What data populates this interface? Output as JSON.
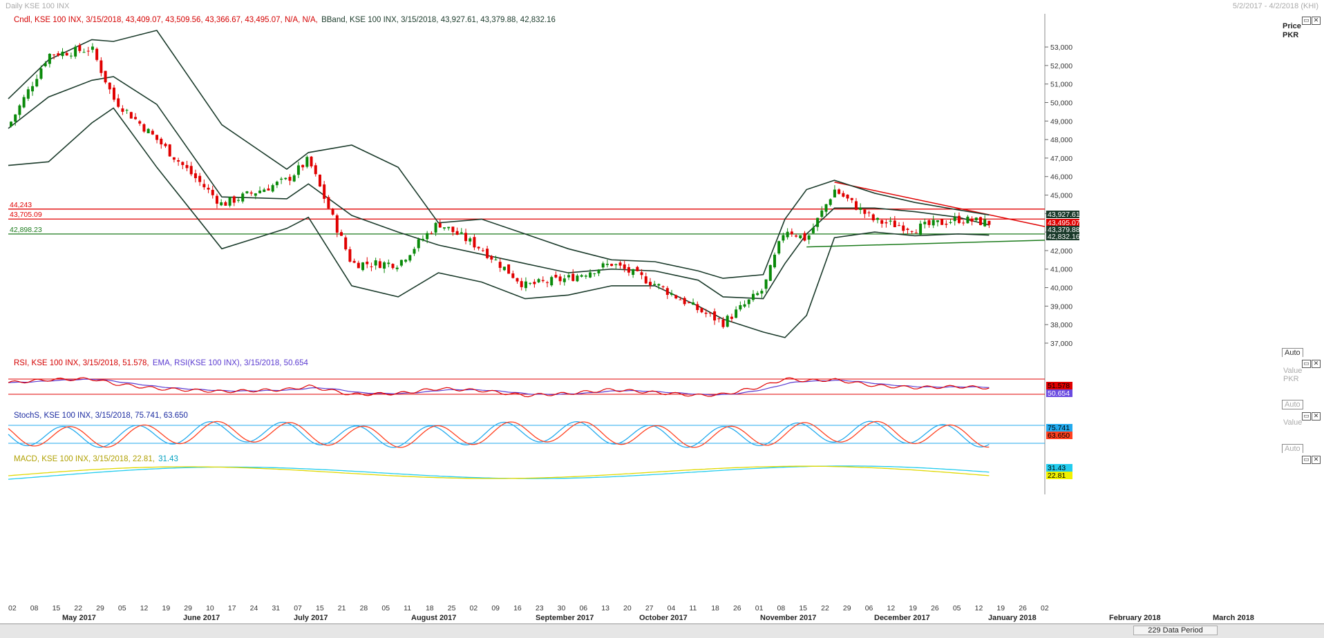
{
  "window": {
    "title": "Daily KSE 100 INX",
    "date_range": "5/2/2017 - 4/2/2018 (KHI)"
  },
  "panes": {
    "price": {
      "legend": [
        {
          "text": "Cndl, KSE 100 INX, 3/15/2018, 43,409.07, 43,509.56, 43,366.67, 43,495.07, N/A, N/A,",
          "color": "#d40000"
        },
        {
          "text": "BBand, KSE 100 INX, 3/15/2018, 43,927.61, 43,379.88, 42,832.16",
          "color": "#1a3a2a"
        }
      ],
      "axis_title": "Price",
      "axis_unit": "PKR",
      "auto": "Auto",
      "ticks": [
        "53,000",
        "52,000",
        "51,000",
        "50,000",
        "49,000",
        "48,000",
        "47,000",
        "46,000",
        "45,000",
        "44,000",
        "43,000",
        "42,000",
        "41,000",
        "40,000",
        "39,000",
        "38,000",
        "37,000"
      ],
      "hlines": [
        {
          "label": "44,243",
          "value": 44243,
          "color": "#e00000"
        },
        {
          "label": "43,705.09",
          "value": 43705.09,
          "color": "#e00000"
        },
        {
          "label": "42,898.23",
          "value": 42898.23,
          "color": "#1a7a1a"
        }
      ],
      "value_tags": [
        {
          "text": "43,927.61",
          "bg": "#1a3a2a",
          "fg": "#ffffff"
        },
        {
          "text": "43,495.07",
          "bg": "#e00000",
          "fg": "#ffffff"
        },
        {
          "text": "43,379.88",
          "bg": "#1a3a2a",
          "fg": "#ffffff"
        },
        {
          "text": "42,832.16",
          "bg": "#1a3a2a",
          "fg": "#ffffff"
        }
      ]
    },
    "rsi": {
      "legend": [
        {
          "text": "RSI, KSE 100 INX, 3/15/2018, 51.578,",
          "color": "#d40000"
        },
        {
          "text": "EMA, RSI(KSE 100 INX), 3/15/2018, 50.654",
          "color": "#5a3ad0"
        }
      ],
      "axis_title": "Value",
      "axis_unit": "PKR",
      "auto": "Auto",
      "value_tags": [
        {
          "text": "51.578",
          "bg": "#e00000",
          "fg": "#000000"
        },
        {
          "text": "50.654",
          "bg": "#6a4ae0",
          "fg": "#ffffff"
        }
      ]
    },
    "stoch": {
      "legend": [
        {
          "text": "StochS, KSE 100 INX, 3/15/2018, 75.741, 63.650",
          "color": "#1a2aa0"
        }
      ],
      "axis_title": "Value",
      "auto": "Auto",
      "value_tags": [
        {
          "text": "75.741",
          "bg": "#22aaee",
          "fg": "#000000"
        },
        {
          "text": "63.650",
          "bg": "#ff4020",
          "fg": "#000000"
        }
      ]
    },
    "macd": {
      "legend": [
        {
          "text": "MACD, KSE 100 INX, 3/15/2018, 22.81,",
          "color": "#b0a000"
        },
        {
          "text": "31.43",
          "color": "#00a0c0"
        }
      ],
      "value_tags": [
        {
          "text": "31.43",
          "bg": "#22ccee",
          "fg": "#000000"
        },
        {
          "text": "22.81",
          "bg": "#f0f000",
          "fg": "#000000"
        }
      ]
    }
  },
  "x_axis": {
    "days": [
      "02",
      "08",
      "15",
      "22",
      "29",
      "05",
      "12",
      "19",
      "29",
      "10",
      "17",
      "24",
      "31",
      "07",
      "15",
      "21",
      "28",
      "05",
      "11",
      "18",
      "25",
      "02",
      "09",
      "16",
      "23",
      "30",
      "06",
      "13",
      "20",
      "27",
      "04",
      "11",
      "18",
      "26",
      "01",
      "08",
      "15",
      "22",
      "29",
      "06",
      "12",
      "19",
      "26",
      "05",
      "12",
      "19",
      "26",
      "02"
    ],
    "months": [
      "May 2017",
      "June 2017",
      "July 2017",
      "August 2017",
      "September 2017",
      "October 2017",
      "November 2017",
      "December 2017",
      "January 2018",
      "February 2018",
      "March 2018"
    ]
  },
  "status": {
    "data_period": "229 Data Period"
  },
  "chart_data": {
    "type": "line",
    "title": "Daily KSE 100 INX",
    "ylabel": "Price PKR",
    "ylim": [
      36700,
      53600
    ],
    "x": [
      "2017-05-02",
      "2017-05-15",
      "2017-05-29",
      "2017-06-05",
      "2017-06-19",
      "2017-07-10",
      "2017-07-31",
      "2017-08-07",
      "2017-08-21",
      "2017-09-05",
      "2017-09-18",
      "2017-10-02",
      "2017-10-16",
      "2017-10-30",
      "2017-11-13",
      "2017-11-27",
      "2017-12-11",
      "2017-12-19",
      "2018-01-01",
      "2018-01-08",
      "2018-01-15",
      "2018-01-24",
      "2018-02-06",
      "2018-02-19",
      "2018-03-05",
      "2018-03-15"
    ],
    "series": [
      {
        "name": "Cndl",
        "values": [
          48700,
          52600,
          52900,
          50200,
          48000,
          44500,
          45800,
          46900,
          41300,
          41300,
          43500,
          42100,
          40100,
          40500,
          41300,
          40200,
          38800,
          38100,
          39900,
          43200,
          42600,
          45300,
          43600,
          43200,
          43700,
          43495.07
        ]
      },
      {
        "name": "BBand upper",
        "values": [
          50200,
          52300,
          53400,
          53300,
          53900,
          48800,
          46400,
          47300,
          47700,
          46500,
          43500,
          43700,
          42900,
          42100,
          41500,
          41400,
          40900,
          40500,
          40700,
          43700,
          45300,
          45800,
          45100,
          44600,
          44200,
          43927.61
        ]
      },
      {
        "name": "BBand middle",
        "values": [
          48600,
          50300,
          51200,
          51400,
          49900,
          44900,
          44800,
          45600,
          43900,
          43000,
          42300,
          41800,
          41300,
          40800,
          41000,
          40900,
          40400,
          39500,
          39400,
          41300,
          42900,
          44300,
          44300,
          44100,
          43800,
          43379.88
        ]
      },
      {
        "name": "BBand lower",
        "values": [
          46600,
          46800,
          48900,
          49700,
          46500,
          42100,
          43200,
          43800,
          40100,
          39500,
          40800,
          40300,
          39400,
          39600,
          40100,
          40100,
          39000,
          38300,
          37600,
          37300,
          38500,
          42700,
          43000,
          42800,
          42900,
          42832.16
        ]
      }
    ],
    "hlines": [
      44243,
      43705.09,
      42898.23
    ],
    "rsi": {
      "values": [
        62,
        68,
        70,
        60,
        50,
        44,
        48,
        55,
        38,
        40,
        50,
        46,
        36,
        40,
        48,
        42,
        36,
        38,
        55,
        70,
        66,
        68,
        56,
        52,
        54,
        51.578
      ],
      "ema_last": 50.654
    },
    "stoch": {
      "k_last": 75.741,
      "d_last": 63.65
    },
    "macd": {
      "macd_last": 22.81,
      "signal_last": 31.43
    }
  }
}
